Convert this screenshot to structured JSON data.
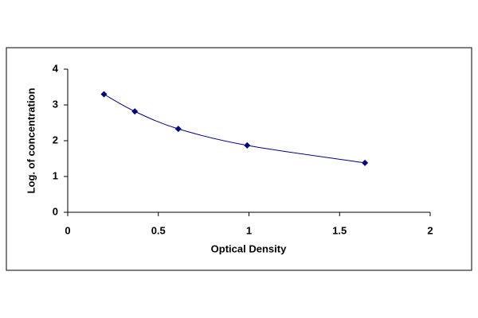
{
  "chart_data": {
    "type": "line",
    "x_label": "Optical Density",
    "y_label": "Log. of concentration",
    "series": [
      {
        "color": "#000080",
        "x": [
          0.2,
          0.37,
          0.61,
          0.99,
          1.64
        ],
        "values": [
          3.3,
          2.82,
          2.33,
          1.87,
          1.38
        ]
      }
    ],
    "xlim": [
      0,
      2
    ],
    "xticks": [
      0,
      0.5,
      1,
      1.5,
      2
    ],
    "ylim": [
      0,
      4
    ],
    "yticks": [
      0,
      1,
      2,
      3,
      4
    ],
    "grid": false
  }
}
